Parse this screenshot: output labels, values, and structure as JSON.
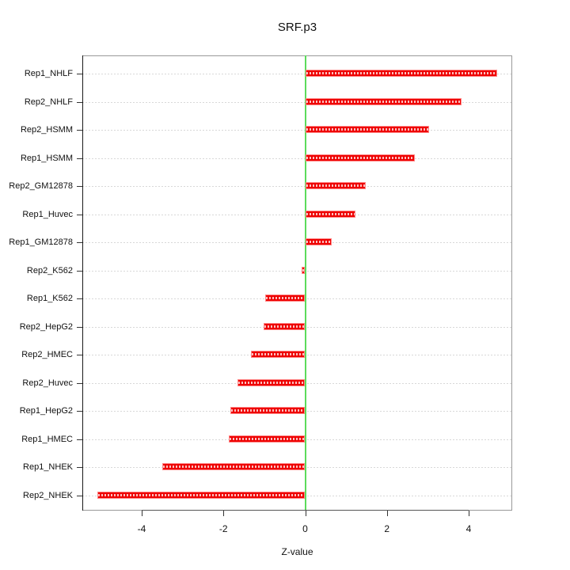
{
  "title": "SRF.p3",
  "chart_data": {
    "type": "bar",
    "orientation": "horizontal",
    "title": "SRF.p3",
    "xlabel": "Z-value",
    "ylabel": "",
    "categories": [
      "Rep1_NHLF",
      "Rep2_NHLF",
      "Rep2_HSMM",
      "Rep1_HSMM",
      "Rep2_GM12878",
      "Rep1_Huvec",
      "Rep1_GM12878",
      "Rep2_K562",
      "Rep1_K562",
      "Rep2_HepG2",
      "Rep2_HMEC",
      "Rep2_Huvec",
      "Rep1_HepG2",
      "Rep1_HMEC",
      "Rep1_NHEK",
      "Rep2_NHEK"
    ],
    "values": [
      4.7,
      3.82,
      3.03,
      2.68,
      1.48,
      1.23,
      0.65,
      -0.09,
      -0.97,
      -1.01,
      -1.33,
      -1.65,
      -1.83,
      -1.86,
      -3.49,
      -5.09
    ],
    "xticks": [
      -4,
      -2,
      0,
      2,
      4
    ],
    "xtick_labels": [
      "-4",
      "-2",
      "0",
      "2",
      "4"
    ],
    "xlim": [
      -5.45,
      5.06
    ],
    "grid": "dashed horizontal line per category, drawn across full plot width",
    "legend": "none",
    "annotations": [
      "vertical reference line at x=0"
    ],
    "colors": {
      "bar_fill": "#ee0000",
      "bar_edge": "#ff8787",
      "zero_line": "#5cdb5c",
      "gridline": "#d8d8d8",
      "box_border": "#999999",
      "axis_line": "#1a1a1a",
      "text": "#111111",
      "background": "#ffffff"
    }
  }
}
